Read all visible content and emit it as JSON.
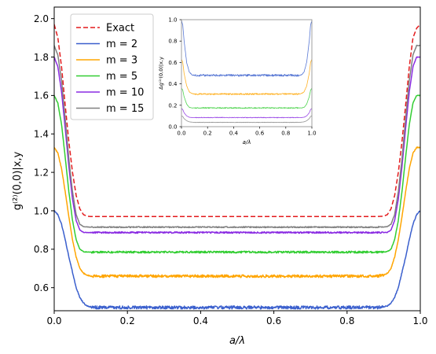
{
  "chart_data": [
    {
      "type": "line",
      "xlabel": "a/λ",
      "ylabel": "g⁽²⁾(0,0)|x,y",
      "xlim": [
        0,
        1
      ],
      "ylim": [
        0.48,
        2.06
      ],
      "xticks": [
        "0.0",
        "0.2",
        "0.4",
        "0.6",
        "0.8",
        "1.0"
      ],
      "xtick_values": [
        0,
        0.2,
        0.4,
        0.6,
        0.8,
        1.0
      ],
      "yticks": [
        "0.6",
        "0.8",
        "1.0",
        "1.2",
        "1.4",
        "1.6",
        "1.8",
        "2.0"
      ],
      "ytick_values": [
        0.6,
        0.8,
        1.0,
        1.2,
        1.4,
        1.6,
        1.8,
        2.0
      ],
      "grid": false,
      "legend_position": "top-left",
      "series": [
        {
          "name": "Exact",
          "color": "#e31a1c",
          "dashed": true,
          "noise": 0.002,
          "x": [
            0,
            0.01,
            0.02,
            0.03,
            0.04,
            0.05,
            0.06,
            0.07,
            0.08,
            0.09,
            0.1,
            0.12,
            0.5,
            0.88,
            0.9,
            0.91,
            0.92,
            0.93,
            0.94,
            0.95,
            0.96,
            0.97,
            0.98,
            0.99,
            1.0
          ],
          "y": [
            1.97,
            1.9,
            1.75,
            1.55,
            1.36,
            1.2,
            1.08,
            1.01,
            0.98,
            0.972,
            0.97,
            0.97,
            0.97,
            0.97,
            0.972,
            0.98,
            1.01,
            1.08,
            1.2,
            1.36,
            1.55,
            1.75,
            1.9,
            1.95,
            1.97
          ]
        },
        {
          "name": "m = 2",
          "color": "#3a5fcd",
          "dashed": false,
          "noise": 0.008,
          "x": [
            0,
            0.01,
            0.02,
            0.03,
            0.04,
            0.05,
            0.06,
            0.07,
            0.08,
            0.09,
            0.1,
            0.12,
            0.5,
            0.88,
            0.9,
            0.91,
            0.92,
            0.93,
            0.94,
            0.95,
            0.96,
            0.97,
            0.98,
            0.99,
            1.0
          ],
          "y": [
            1.0,
            0.98,
            0.93,
            0.85,
            0.76,
            0.68,
            0.6,
            0.55,
            0.52,
            0.505,
            0.5,
            0.497,
            0.497,
            0.497,
            0.5,
            0.505,
            0.52,
            0.55,
            0.6,
            0.68,
            0.76,
            0.85,
            0.93,
            0.98,
            1.0
          ]
        },
        {
          "name": "m = 3",
          "color": "#ffa500",
          "dashed": false,
          "noise": 0.007,
          "x": [
            0,
            0.01,
            0.02,
            0.03,
            0.04,
            0.05,
            0.06,
            0.07,
            0.08,
            0.09,
            0.1,
            0.12,
            0.5,
            0.88,
            0.9,
            0.91,
            0.92,
            0.93,
            0.94,
            0.95,
            0.96,
            0.97,
            0.98,
            0.99,
            1.0
          ],
          "y": [
            1.33,
            1.3,
            1.22,
            1.1,
            0.97,
            0.85,
            0.76,
            0.7,
            0.675,
            0.665,
            0.66,
            0.66,
            0.66,
            0.66,
            0.665,
            0.675,
            0.7,
            0.76,
            0.85,
            0.97,
            1.1,
            1.22,
            1.3,
            1.33,
            1.33
          ]
        },
        {
          "name": "m = 5",
          "color": "#32cd32",
          "dashed": false,
          "noise": 0.005,
          "x": [
            0,
            0.01,
            0.02,
            0.03,
            0.04,
            0.05,
            0.06,
            0.07,
            0.08,
            0.09,
            0.1,
            0.12,
            0.5,
            0.88,
            0.9,
            0.91,
            0.92,
            0.93,
            0.94,
            0.95,
            0.96,
            0.97,
            0.98,
            0.99,
            1.0
          ],
          "y": [
            1.6,
            1.56,
            1.45,
            1.28,
            1.1,
            0.95,
            0.85,
            0.8,
            0.788,
            0.785,
            0.785,
            0.785,
            0.785,
            0.785,
            0.785,
            0.788,
            0.8,
            0.85,
            0.95,
            1.1,
            1.28,
            1.45,
            1.56,
            1.6,
            1.6
          ]
        },
        {
          "name": "m = 10",
          "color": "#8a2be2",
          "dashed": false,
          "noise": 0.004,
          "x": [
            0,
            0.01,
            0.02,
            0.03,
            0.04,
            0.05,
            0.06,
            0.07,
            0.08,
            0.09,
            0.1,
            0.12,
            0.5,
            0.88,
            0.9,
            0.91,
            0.92,
            0.93,
            0.94,
            0.95,
            0.96,
            0.97,
            0.98,
            0.99,
            1.0
          ],
          "y": [
            1.8,
            1.75,
            1.62,
            1.43,
            1.23,
            1.06,
            0.95,
            0.9,
            0.888,
            0.887,
            0.887,
            0.887,
            0.887,
            0.887,
            0.887,
            0.888,
            0.9,
            0.95,
            1.06,
            1.23,
            1.43,
            1.62,
            1.75,
            1.8,
            1.8
          ]
        },
        {
          "name": "m = 15",
          "color": "#808080",
          "dashed": false,
          "noise": 0.003,
          "x": [
            0,
            0.01,
            0.02,
            0.03,
            0.04,
            0.05,
            0.06,
            0.07,
            0.08,
            0.09,
            0.1,
            0.12,
            0.5,
            0.88,
            0.9,
            0.91,
            0.92,
            0.93,
            0.94,
            0.95,
            0.96,
            0.97,
            0.98,
            0.99,
            1.0
          ],
          "y": [
            1.86,
            1.81,
            1.68,
            1.48,
            1.27,
            1.1,
            0.98,
            0.93,
            0.918,
            0.916,
            0.915,
            0.915,
            0.915,
            0.915,
            0.916,
            0.918,
            0.93,
            0.98,
            1.1,
            1.27,
            1.48,
            1.68,
            1.81,
            1.86,
            1.86
          ]
        }
      ]
    },
    {
      "type": "line",
      "xlabel": "a/λ",
      "ylabel": "Δg⁽²⁾(0,0)|x,y",
      "xlim": [
        0,
        1
      ],
      "ylim": [
        0,
        1
      ],
      "xticks": [
        "0.0",
        "0.2",
        "0.4",
        "0.6",
        "0.8",
        "1.0"
      ],
      "xtick_values": [
        0,
        0.2,
        0.4,
        0.6,
        0.8,
        1.0
      ],
      "yticks": [
        "0.0",
        "0.2",
        "0.4",
        "0.6",
        "0.8",
        "1.0"
      ],
      "ytick_values": [
        0,
        0.2,
        0.4,
        0.6,
        0.8,
        1.0
      ],
      "grid": false,
      "series": [
        {
          "color": "#3a5fcd",
          "noise": 0.01,
          "x": [
            0,
            0.01,
            0.02,
            0.04,
            0.06,
            0.08,
            0.1,
            0.5,
            0.9,
            0.92,
            0.94,
            0.96,
            0.98,
            0.99,
            1.0
          ],
          "y": [
            0.99,
            0.95,
            0.8,
            0.6,
            0.51,
            0.485,
            0.48,
            0.48,
            0.48,
            0.485,
            0.51,
            0.6,
            0.8,
            0.95,
            0.99
          ]
        },
        {
          "color": "#ffa500",
          "noise": 0.007,
          "x": [
            0,
            0.01,
            0.02,
            0.04,
            0.06,
            0.08,
            0.1,
            0.5,
            0.9,
            0.92,
            0.94,
            0.96,
            0.98,
            0.99,
            1.0
          ],
          "y": [
            0.63,
            0.6,
            0.5,
            0.38,
            0.325,
            0.31,
            0.305,
            0.305,
            0.305,
            0.31,
            0.325,
            0.38,
            0.5,
            0.6,
            0.63
          ]
        },
        {
          "color": "#32cd32",
          "noise": 0.005,
          "x": [
            0,
            0.01,
            0.02,
            0.04,
            0.06,
            0.08,
            0.1,
            0.5,
            0.9,
            0.92,
            0.94,
            0.96,
            0.98,
            0.99,
            1.0
          ],
          "y": [
            0.36,
            0.34,
            0.28,
            0.21,
            0.18,
            0.175,
            0.175,
            0.175,
            0.175,
            0.175,
            0.18,
            0.21,
            0.28,
            0.34,
            0.36
          ]
        },
        {
          "color": "#8a2be2",
          "noise": 0.003,
          "x": [
            0,
            0.01,
            0.02,
            0.04,
            0.06,
            0.08,
            0.1,
            0.5,
            0.9,
            0.92,
            0.94,
            0.96,
            0.98,
            0.99,
            1.0
          ],
          "y": [
            0.17,
            0.16,
            0.13,
            0.1,
            0.088,
            0.085,
            0.085,
            0.085,
            0.085,
            0.085,
            0.088,
            0.1,
            0.13,
            0.16,
            0.17
          ]
        },
        {
          "color": "#808080",
          "noise": 0.002,
          "x": [
            0,
            0.01,
            0.02,
            0.04,
            0.06,
            0.08,
            0.1,
            0.5,
            0.9,
            0.92,
            0.94,
            0.96,
            0.98,
            0.99,
            1.0
          ],
          "y": [
            0.1,
            0.095,
            0.075,
            0.055,
            0.045,
            0.042,
            0.04,
            0.04,
            0.04,
            0.042,
            0.045,
            0.055,
            0.075,
            0.095,
            0.1
          ]
        }
      ]
    }
  ]
}
